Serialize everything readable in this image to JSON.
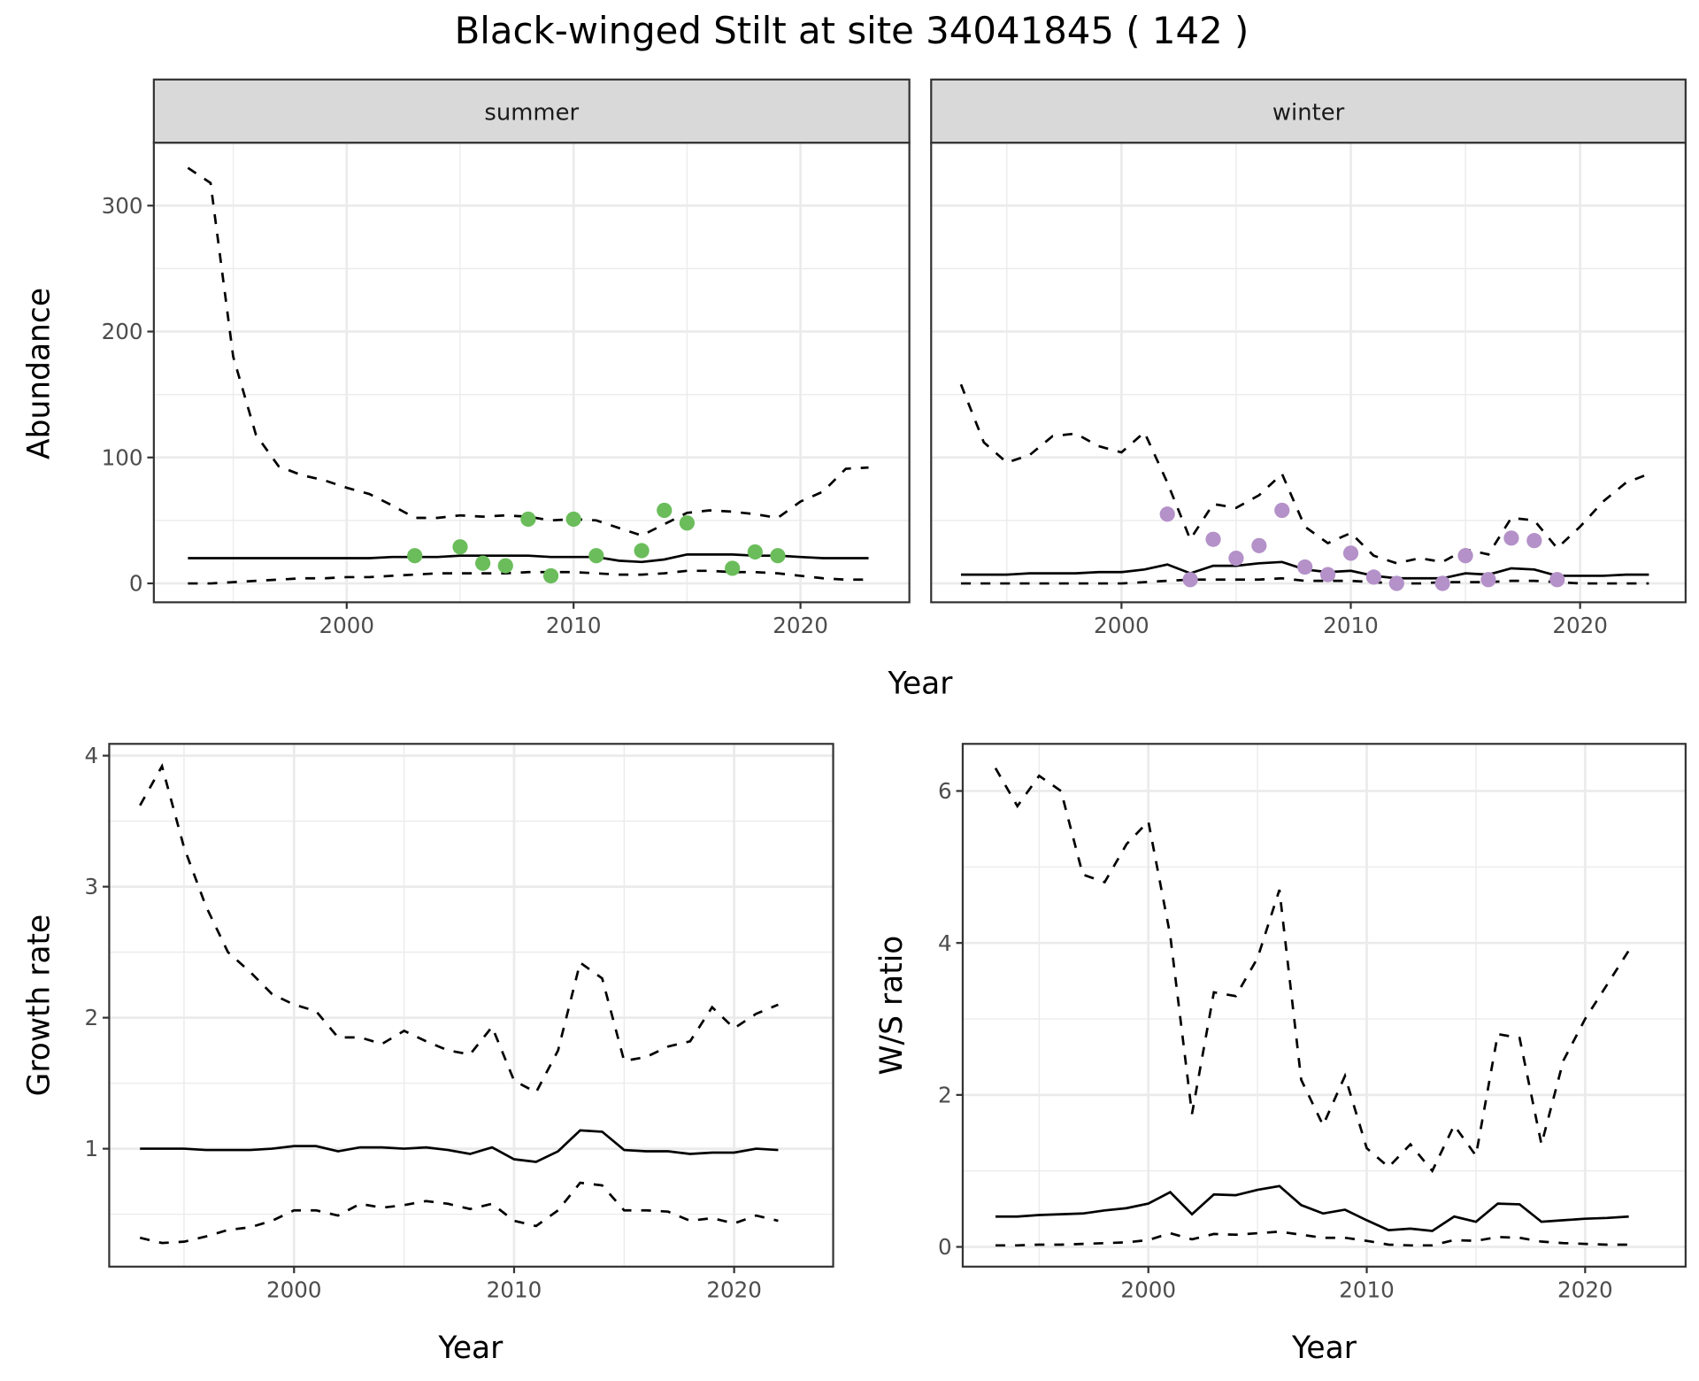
{
  "title": "Black-winged Stilt at site 34041845 ( 142 )",
  "chart_data": [
    {
      "type": "line",
      "id": "summer",
      "strip": "summer",
      "xlabel": "",
      "ylabel": "Abundance",
      "xlim": [
        1991.5,
        2024.8
      ],
      "ylim": [
        -15,
        350
      ],
      "xticks": [
        2000,
        2010,
        2020
      ],
      "yticks": [
        0,
        100,
        200,
        300
      ],
      "show_y_ticks": true,
      "grid": true,
      "point_color": "#6bbd5b",
      "years": [
        1993,
        1994,
        1995,
        1996,
        1997,
        1998,
        1999,
        2000,
        2001,
        2002,
        2003,
        2004,
        2005,
        2006,
        2007,
        2008,
        2009,
        2010,
        2011,
        2012,
        2013,
        2014,
        2015,
        2016,
        2017,
        2018,
        2019,
        2020,
        2021,
        2022,
        2023
      ],
      "upper": [
        330,
        318,
        180,
        118,
        93,
        86,
        82,
        76,
        71,
        62,
        52,
        52,
        54,
        53,
        54,
        53,
        50,
        51,
        50,
        44,
        38,
        47,
        56,
        58,
        57,
        55,
        52,
        65,
        73,
        91,
        92
      ],
      "mid": [
        20,
        20,
        20,
        20,
        20,
        20,
        20,
        20,
        20,
        21,
        21,
        21,
        22,
        22,
        22,
        22,
        21,
        21,
        21,
        18,
        17,
        19,
        23,
        23,
        23,
        22,
        22,
        21,
        20,
        20,
        20
      ],
      "lower": [
        0,
        0,
        1,
        2,
        3,
        4,
        4,
        5,
        5,
        6,
        7,
        8,
        8,
        8,
        8,
        9,
        9,
        9,
        8,
        7,
        7,
        8,
        10,
        10,
        9,
        9,
        8,
        6,
        4,
        3,
        3
      ],
      "points": {
        "x": [
          2003,
          2005,
          2006,
          2007,
          2008,
          2009,
          2010,
          2011,
          2013,
          2014,
          2015,
          2017,
          2018,
          2019
        ],
        "y": [
          22,
          29,
          16,
          14,
          51,
          6,
          51,
          22,
          26,
          58,
          48,
          12,
          25,
          22
        ]
      }
    },
    {
      "type": "line",
      "id": "winter",
      "strip": "winter",
      "xlabel": "",
      "ylabel": "",
      "xlim": [
        1991.7,
        2024.6
      ],
      "ylim": [
        -15,
        350
      ],
      "xticks": [
        2000,
        2010,
        2020
      ],
      "yticks": [
        0,
        100,
        200,
        300
      ],
      "show_y_ticks": false,
      "grid": true,
      "point_color": "#b491c8",
      "years": [
        1993,
        1994,
        1995,
        1996,
        1997,
        1998,
        1999,
        2000,
        2001,
        2002,
        2003,
        2004,
        2005,
        2006,
        2007,
        2008,
        2009,
        2010,
        2011,
        2012,
        2013,
        2014,
        2015,
        2016,
        2017,
        2018,
        2019,
        2020,
        2021,
        2022,
        2023
      ],
      "upper": [
        158,
        112,
        96,
        102,
        117,
        119,
        109,
        104,
        120,
        80,
        35,
        63,
        60,
        70,
        87,
        45,
        32,
        40,
        22,
        16,
        20,
        17,
        27,
        23,
        52,
        50,
        28,
        45,
        65,
        80,
        87
      ],
      "mid": [
        7,
        7,
        7,
        8,
        8,
        8,
        9,
        9,
        11,
        15,
        8,
        14,
        14,
        16,
        17,
        11,
        9,
        10,
        6,
        4,
        4,
        4,
        8,
        7,
        12,
        11,
        6,
        6,
        6,
        7,
        7
      ],
      "lower": [
        0,
        0,
        0,
        0,
        0,
        0,
        0,
        0,
        1,
        2,
        3,
        3,
        3,
        3,
        4,
        2,
        2,
        2,
        1,
        0,
        0,
        1,
        1,
        1,
        2,
        2,
        1,
        0,
        0,
        0,
        0
      ],
      "points": {
        "x": [
          2002,
          2003,
          2004,
          2005,
          2006,
          2007,
          2008,
          2009,
          2010,
          2011,
          2012,
          2014,
          2015,
          2016,
          2017,
          2018,
          2019
        ],
        "y": [
          55,
          3,
          35,
          20,
          30,
          58,
          13,
          7,
          24,
          5,
          0,
          0,
          22,
          3,
          36,
          34,
          3
        ]
      }
    },
    {
      "type": "line",
      "id": "growth",
      "xlabel": "Year",
      "ylabel": "Growth rate",
      "xlim": [
        1991.6,
        2024.5
      ],
      "ylim": [
        0.1,
        4.09
      ],
      "xticks": [
        2000,
        2010,
        2020
      ],
      "yticks": [
        1,
        2,
        3,
        4
      ],
      "show_y_ticks": true,
      "grid": true,
      "years": [
        1993,
        1994,
        1995,
        1996,
        1997,
        1998,
        1999,
        2000,
        2001,
        2002,
        2003,
        2004,
        2005,
        2006,
        2007,
        2008,
        2009,
        2010,
        2011,
        2012,
        2013,
        2014,
        2015,
        2016,
        2017,
        2018,
        2019,
        2020,
        2021,
        2022
      ],
      "upper": [
        3.62,
        3.92,
        3.3,
        2.85,
        2.5,
        2.35,
        2.18,
        2.1,
        2.05,
        1.85,
        1.85,
        1.8,
        1.9,
        1.82,
        1.75,
        1.72,
        1.93,
        1.52,
        1.43,
        1.75,
        2.42,
        2.3,
        1.67,
        1.7,
        1.78,
        1.82,
        2.08,
        1.92,
        2.03,
        2.1
      ],
      "mid": [
        1.0,
        1.0,
        1.0,
        0.99,
        0.99,
        0.99,
        1.0,
        1.02,
        1.02,
        0.98,
        1.01,
        1.01,
        1.0,
        1.01,
        0.99,
        0.96,
        1.01,
        0.92,
        0.9,
        0.98,
        1.14,
        1.13,
        0.99,
        0.98,
        0.98,
        0.96,
        0.97,
        0.97,
        1.0,
        0.99
      ],
      "lower": [
        0.32,
        0.28,
        0.29,
        0.33,
        0.38,
        0.4,
        0.45,
        0.53,
        0.53,
        0.49,
        0.58,
        0.55,
        0.57,
        0.6,
        0.58,
        0.54,
        0.58,
        0.45,
        0.41,
        0.53,
        0.74,
        0.72,
        0.53,
        0.53,
        0.52,
        0.45,
        0.47,
        0.43,
        0.49,
        0.45
      ]
    },
    {
      "type": "line",
      "id": "ws",
      "xlabel": "Year",
      "ylabel": "W/S ratio",
      "xlim": [
        1991.5,
        2024.6
      ],
      "ylim": [
        -0.26,
        6.62
      ],
      "xticks": [
        2000,
        2010,
        2020
      ],
      "yticks": [
        0,
        2,
        4,
        6
      ],
      "show_y_ticks": true,
      "grid": true,
      "years": [
        1993,
        1994,
        1995,
        1996,
        1997,
        1998,
        1999,
        2000,
        2001,
        2002,
        2003,
        2004,
        2005,
        2006,
        2007,
        2008,
        2009,
        2010,
        2011,
        2012,
        2013,
        2014,
        2015,
        2016,
        2017,
        2018,
        2019,
        2020,
        2021,
        2022
      ],
      "upper": [
        6.3,
        5.8,
        6.2,
        6.0,
        4.9,
        4.8,
        5.3,
        5.6,
        4.1,
        1.75,
        3.35,
        3.3,
        3.8,
        4.7,
        2.2,
        1.6,
        2.25,
        1.3,
        1.05,
        1.35,
        1.0,
        1.6,
        1.2,
        2.8,
        2.75,
        1.35,
        2.45,
        3.0,
        3.45,
        3.9
      ],
      "mid": [
        0.4,
        0.4,
        0.42,
        0.43,
        0.44,
        0.48,
        0.51,
        0.57,
        0.72,
        0.43,
        0.69,
        0.68,
        0.75,
        0.8,
        0.55,
        0.44,
        0.49,
        0.35,
        0.22,
        0.24,
        0.21,
        0.4,
        0.33,
        0.57,
        0.56,
        0.33,
        0.35,
        0.37,
        0.38,
        0.4
      ],
      "lower": [
        0.02,
        0.02,
        0.03,
        0.03,
        0.04,
        0.05,
        0.06,
        0.09,
        0.18,
        0.1,
        0.17,
        0.16,
        0.18,
        0.2,
        0.16,
        0.12,
        0.12,
        0.08,
        0.03,
        0.02,
        0.02,
        0.09,
        0.08,
        0.13,
        0.12,
        0.07,
        0.05,
        0.04,
        0.03,
        0.03
      ]
    }
  ],
  "top_xlabel": "Year"
}
